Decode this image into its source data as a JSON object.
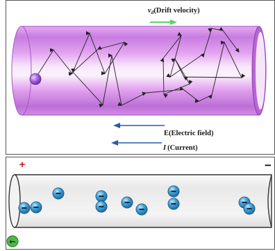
{
  "top_panel": {
    "drift_velocity": {
      "symbol": "v",
      "subscript": "d",
      "text": "(Drift velocity)"
    },
    "electric_field": {
      "symbol": "E",
      "text": "(Electric field)"
    },
    "current": {
      "symbol": "I",
      "text": "(Current)"
    }
  },
  "bottom_panel": {
    "positive_terminal": "+",
    "negative_terminal": "−",
    "electron_sign": "−",
    "arrow_badge_glyph": "←"
  },
  "colors": {
    "wire_magenta": "#c77ce0",
    "drift_arrow_green": "#5fd06a",
    "field_arrow_blue": "#2a5b9e",
    "ion_purple": "#8a4bc9",
    "electron_blue": "#3f9ed6",
    "positive_red": "#c81d1d",
    "badge_green": "#4fb848"
  }
}
